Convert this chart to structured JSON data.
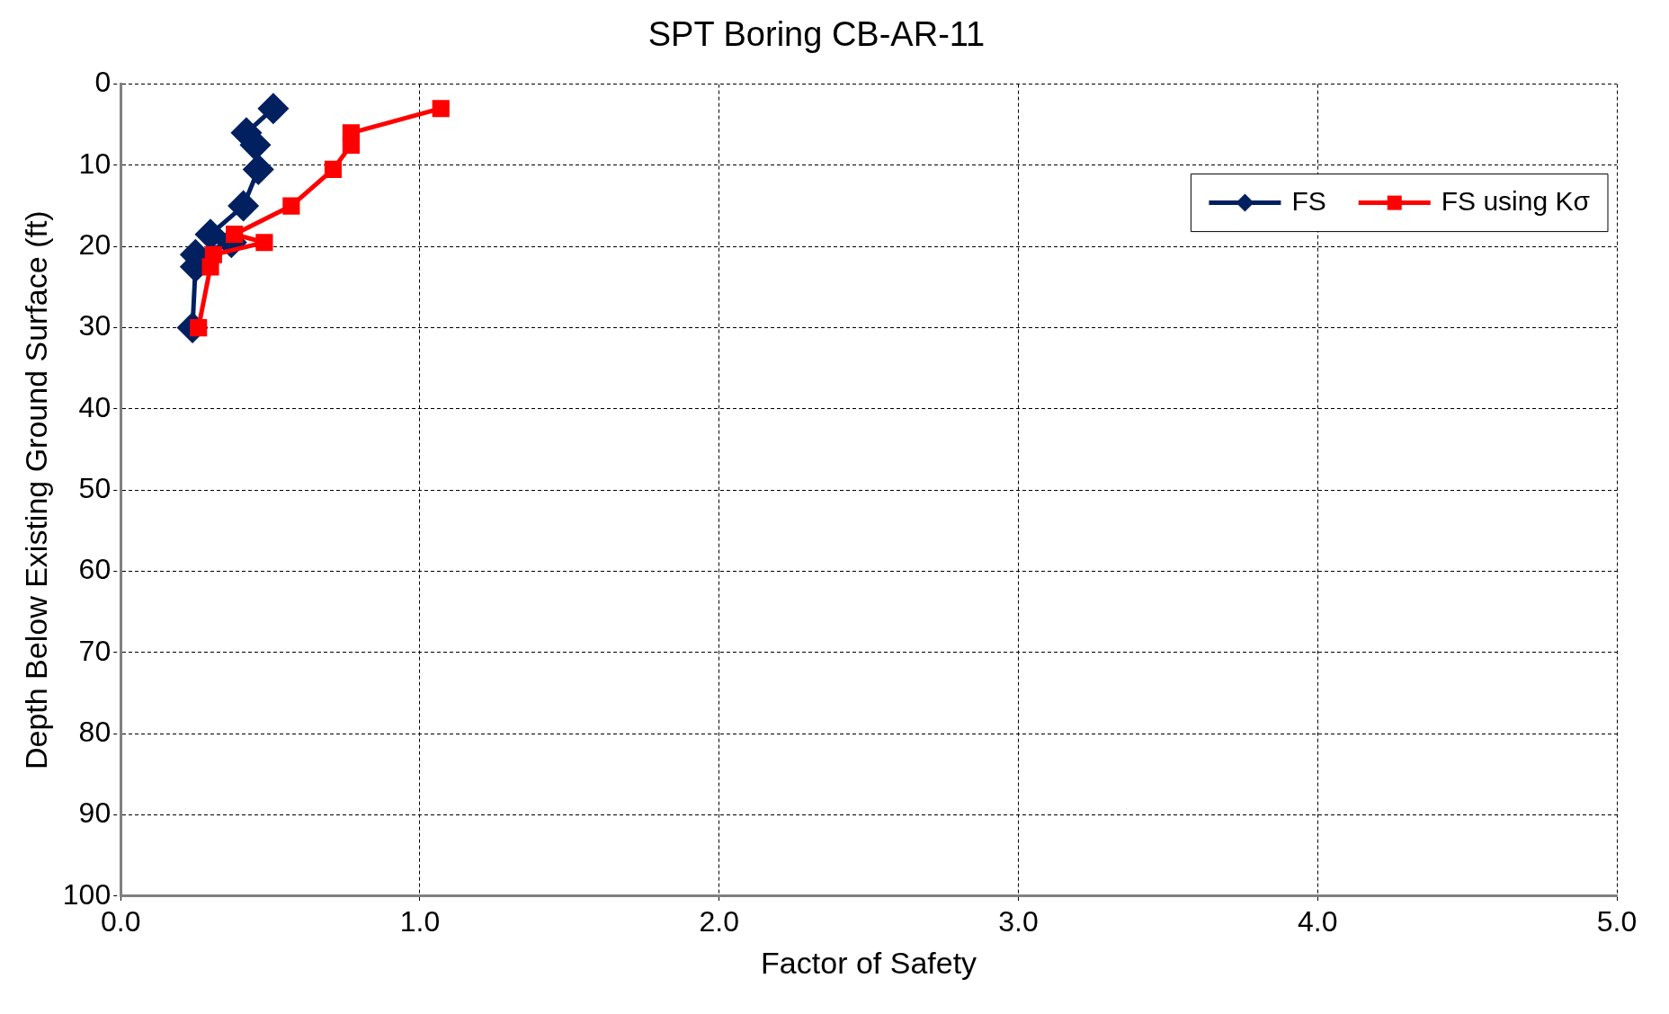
{
  "chart_data": {
    "type": "line",
    "title": "SPT Boring CB-AR-11",
    "xlabel": "Factor of Safety",
    "ylabel": "Depth Below Existing Ground Surface (ft)",
    "series": [
      {
        "name": "FS",
        "color": "#002060",
        "marker": "diamond",
        "x": [
          0.51,
          0.42,
          0.45,
          0.46,
          0.41,
          0.3,
          0.37,
          0.25,
          0.25,
          0.24
        ],
        "values": [
          3,
          6,
          7.5,
          10.5,
          15,
          18.5,
          19.5,
          21,
          22.5,
          30
        ]
      },
      {
        "name": "FS using Kσ",
        "color": "#ff0000",
        "marker": "square",
        "x": [
          1.07,
          0.77,
          0.77,
          0.71,
          0.57,
          0.38,
          0.48,
          0.31,
          0.3,
          0.26
        ],
        "values": [
          3,
          6,
          7.5,
          10.5,
          15,
          18.5,
          19.5,
          21,
          22.5,
          30
        ]
      }
    ],
    "xlim": [
      0,
      5
    ],
    "xticks": [
      {
        "value": 0,
        "label": "0.0"
      },
      {
        "value": 1,
        "label": "1.0"
      },
      {
        "value": 2,
        "label": "2.0"
      },
      {
        "value": 3,
        "label": "3.0"
      },
      {
        "value": 4,
        "label": "4.0"
      },
      {
        "value": 5,
        "label": "5.0"
      }
    ],
    "ylim": [
      100,
      0
    ],
    "yticks": [
      0,
      10,
      20,
      30,
      40,
      50,
      60,
      70,
      80,
      90,
      100
    ],
    "grid": true,
    "legend": "top right",
    "line_style": "solid"
  }
}
